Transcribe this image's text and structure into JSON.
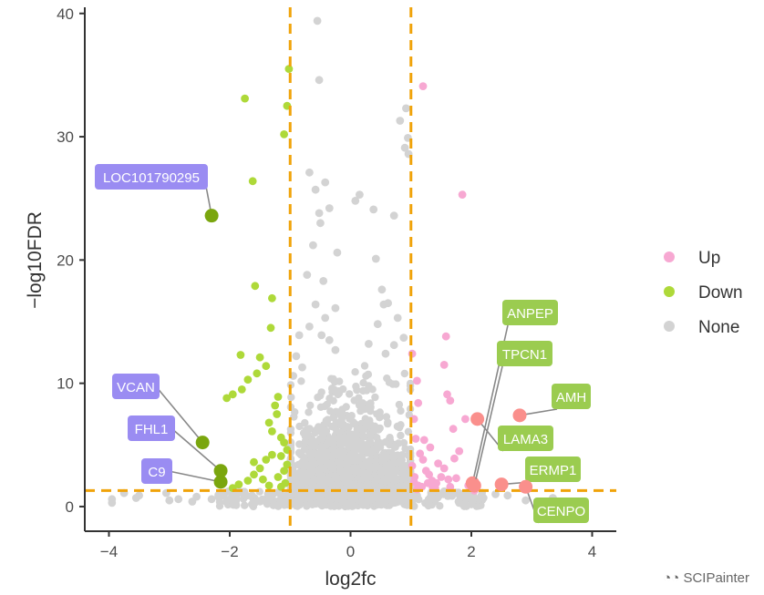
{
  "chart_data": {
    "type": "scatter",
    "title": "",
    "xlabel": "log2fc",
    "ylabel": "-log10FDR",
    "xlim": [
      -4.4,
      4.4
    ],
    "ylim": [
      -2,
      40.5
    ],
    "x_ticks": [
      -4,
      -2,
      0,
      2,
      4
    ],
    "y_ticks": [
      0,
      10,
      20,
      30,
      40
    ],
    "thresholds": {
      "log2fc": [
        -1,
        1
      ],
      "neg_log10_fdr": 1.3
    },
    "grid": false,
    "legend_position": "right",
    "colors": {
      "Up": "#f7a8d2",
      "Down": "#aed939",
      "None": "#d3d3d3",
      "threshold": "#f0a30a",
      "up_label": "#9bcc50",
      "down_label": "#9a8cf2",
      "up_highlight": "#fa8f8c",
      "down_highlight": "#7aa60e"
    },
    "series": [
      {
        "name": "Up",
        "points": [
          [
            1.02,
            12.4
          ],
          [
            1.1,
            10.2
          ],
          [
            1.12,
            8.4
          ],
          [
            1.05,
            7.1
          ],
          [
            1.08,
            5.5
          ],
          [
            1.15,
            4.3
          ],
          [
            1.2,
            3.8
          ],
          [
            1.25,
            2.9
          ],
          [
            1.3,
            2.6
          ],
          [
            1.35,
            2.1
          ],
          [
            1.42,
            1.9
          ],
          [
            1.5,
            2.4
          ],
          [
            1.55,
            3.1
          ],
          [
            1.62,
            2.2
          ],
          [
            1.7,
            6.3
          ],
          [
            1.55,
            11.5
          ],
          [
            1.6,
            9.1
          ],
          [
            1.65,
            8.6
          ],
          [
            1.58,
            13.8
          ],
          [
            1.85,
            25.3
          ],
          [
            1.2,
            34.1
          ],
          [
            1.05,
            2.0
          ],
          [
            1.12,
            1.7
          ],
          [
            1.18,
            1.6
          ],
          [
            1.28,
            1.9
          ],
          [
            1.4,
            1.5
          ],
          [
            1.75,
            2.3
          ],
          [
            1.8,
            4.5
          ],
          [
            1.9,
            7.1
          ],
          [
            1.95,
            1.7
          ],
          [
            2.05,
            1.3
          ],
          [
            1.22,
            5.4
          ],
          [
            1.32,
            4.8
          ],
          [
            1.45,
            3.5
          ],
          [
            1.1,
            1.4
          ],
          [
            1.65,
            1.6
          ],
          [
            1.72,
            3.9
          ],
          [
            1.02,
            3.3
          ],
          [
            1.06,
            2.4
          ],
          [
            1.36,
            1.55
          ]
        ]
      },
      {
        "name": "Down",
        "points": [
          [
            -1.75,
            33.1
          ],
          [
            -1.02,
            35.5
          ],
          [
            -1.05,
            32.5
          ],
          [
            -1.1,
            30.2
          ],
          [
            -1.62,
            26.4
          ],
          [
            -1.58,
            17.9
          ],
          [
            -1.3,
            16.9
          ],
          [
            -1.32,
            14.5
          ],
          [
            -1.4,
            11.4
          ],
          [
            -1.55,
            10.8
          ],
          [
            -1.7,
            10.3
          ],
          [
            -1.8,
            9.5
          ],
          [
            -1.95,
            9.1
          ],
          [
            -2.05,
            8.8
          ],
          [
            -1.2,
            8.9
          ],
          [
            -1.25,
            8.2
          ],
          [
            -1.35,
            6.8
          ],
          [
            -1.3,
            6.1
          ],
          [
            -1.15,
            5.6
          ],
          [
            -1.1,
            5.2
          ],
          [
            -1.05,
            4.6
          ],
          [
            -1.3,
            4.2
          ],
          [
            -1.4,
            3.8
          ],
          [
            -1.5,
            3.1
          ],
          [
            -1.6,
            2.6
          ],
          [
            -1.7,
            2.1
          ],
          [
            -1.85,
            1.8
          ],
          [
            -1.95,
            1.5
          ],
          [
            -1.1,
            2.9
          ],
          [
            -1.2,
            2.4
          ],
          [
            -1.45,
            2.2
          ],
          [
            -1.05,
            3.4
          ],
          [
            -1.08,
            1.9
          ],
          [
            -1.15,
            1.6
          ],
          [
            -1.6,
            3.6
          ],
          [
            -1.22,
            7.5
          ],
          [
            -1.15,
            4.1
          ],
          [
            -1.35,
            1.7
          ],
          [
            -1.82,
            12.3
          ],
          [
            -1.5,
            12.1
          ]
        ]
      },
      {
        "name": "None",
        "points": [
          [
            -0.55,
            39.4
          ],
          [
            -0.52,
            34.6
          ],
          [
            -0.42,
            26.3
          ],
          [
            -0.68,
            27.1
          ],
          [
            -0.58,
            25.7
          ],
          [
            -0.52,
            23.8
          ],
          [
            -0.5,
            23.0
          ],
          [
            -0.35,
            24.2
          ],
          [
            -0.22,
            20.6
          ],
          [
            -0.62,
            21.2
          ],
          [
            -0.45,
            18.3
          ],
          [
            -0.72,
            18.8
          ],
          [
            -0.25,
            16.1
          ],
          [
            -0.58,
            16.4
          ],
          [
            -0.42,
            15.3
          ],
          [
            -0.68,
            14.6
          ],
          [
            -0.48,
            13.9
          ],
          [
            -0.35,
            13.5
          ],
          [
            0.15,
            25.3
          ],
          [
            0.08,
            24.8
          ],
          [
            0.38,
            24.1
          ],
          [
            0.72,
            23.6
          ],
          [
            0.42,
            20.1
          ],
          [
            0.82,
            31.3
          ],
          [
            0.92,
            32.3
          ],
          [
            0.95,
            29.9
          ],
          [
            0.9,
            29.1
          ],
          [
            0.96,
            28.6
          ],
          [
            0.52,
            17.6
          ],
          [
            0.55,
            16.4
          ],
          [
            0.62,
            16.5
          ],
          [
            0.78,
            15.3
          ],
          [
            0.88,
            13.7
          ],
          [
            0.72,
            13.1
          ],
          [
            0.45,
            14.8
          ],
          [
            -0.85,
            13.9
          ],
          [
            -0.9,
            12.2
          ],
          [
            -0.95,
            10.6
          ],
          [
            -0.8,
            11.3
          ],
          [
            -0.25,
            12.7
          ],
          [
            0.3,
            13.2
          ],
          [
            0.58,
            12.4
          ],
          [
            -3.95,
            0.6
          ],
          [
            -3.95,
            0.3
          ],
          [
            -3.75,
            1.1
          ],
          [
            -3.55,
            0.7
          ],
          [
            -3.5,
            0.9
          ],
          [
            -3.05,
            1.1
          ],
          [
            -3.0,
            0.5
          ],
          [
            -2.85,
            0.6
          ],
          [
            -2.62,
            0.4
          ],
          [
            -2.55,
            0.8
          ],
          [
            -2.3,
            0.6
          ],
          [
            2.4,
            1.0
          ],
          [
            2.6,
            0.9
          ],
          [
            2.9,
            0.5
          ],
          [
            3.25,
            0.4
          ],
          [
            3.35,
            0.7
          ],
          [
            2.2,
            0.7
          ],
          [
            2.0,
            1.5
          ],
          [
            1.9,
            0.9
          ],
          [
            1.6,
            1.0
          ],
          [
            1.8,
            0.3
          ],
          [
            -2.1,
            0.9
          ],
          [
            -1.9,
            0.2
          ],
          [
            1.3,
            0.2
          ],
          [
            1.4,
            0.6
          ],
          [
            1.05,
            0.9
          ],
          [
            0.98,
            1.1
          ],
          [
            -0.98,
            1.1
          ]
        ]
      }
    ],
    "labels": [
      {
        "text": "LOC101790295",
        "group": "Down",
        "x": -2.3,
        "y": 23.6
      },
      {
        "text": "VCAN",
        "group": "Down",
        "x": -2.45,
        "y": 5.2
      },
      {
        "text": "FHL1",
        "group": "Down",
        "x": -2.15,
        "y": 2.9
      },
      {
        "text": "C9",
        "group": "Down",
        "x": -2.15,
        "y": 2.0
      },
      {
        "text": "ANPEP",
        "group": "Up",
        "x": 2.02,
        "y": 1.9
      },
      {
        "text": "TPCN1",
        "group": "Up",
        "x": 2.05,
        "y": 1.7
      },
      {
        "text": "AMH",
        "group": "Up",
        "x": 2.8,
        "y": 7.4
      },
      {
        "text": "LAMA3",
        "group": "Up",
        "x": 2.1,
        "y": 7.1
      },
      {
        "text": "ERMP1",
        "group": "Up",
        "x": 2.5,
        "y": 1.8
      },
      {
        "text": "CENPO",
        "group": "Up",
        "x": 2.9,
        "y": 1.6
      }
    ],
    "legend": [
      "Up",
      "Down",
      "None"
    ]
  },
  "watermark": "SCIPainter"
}
